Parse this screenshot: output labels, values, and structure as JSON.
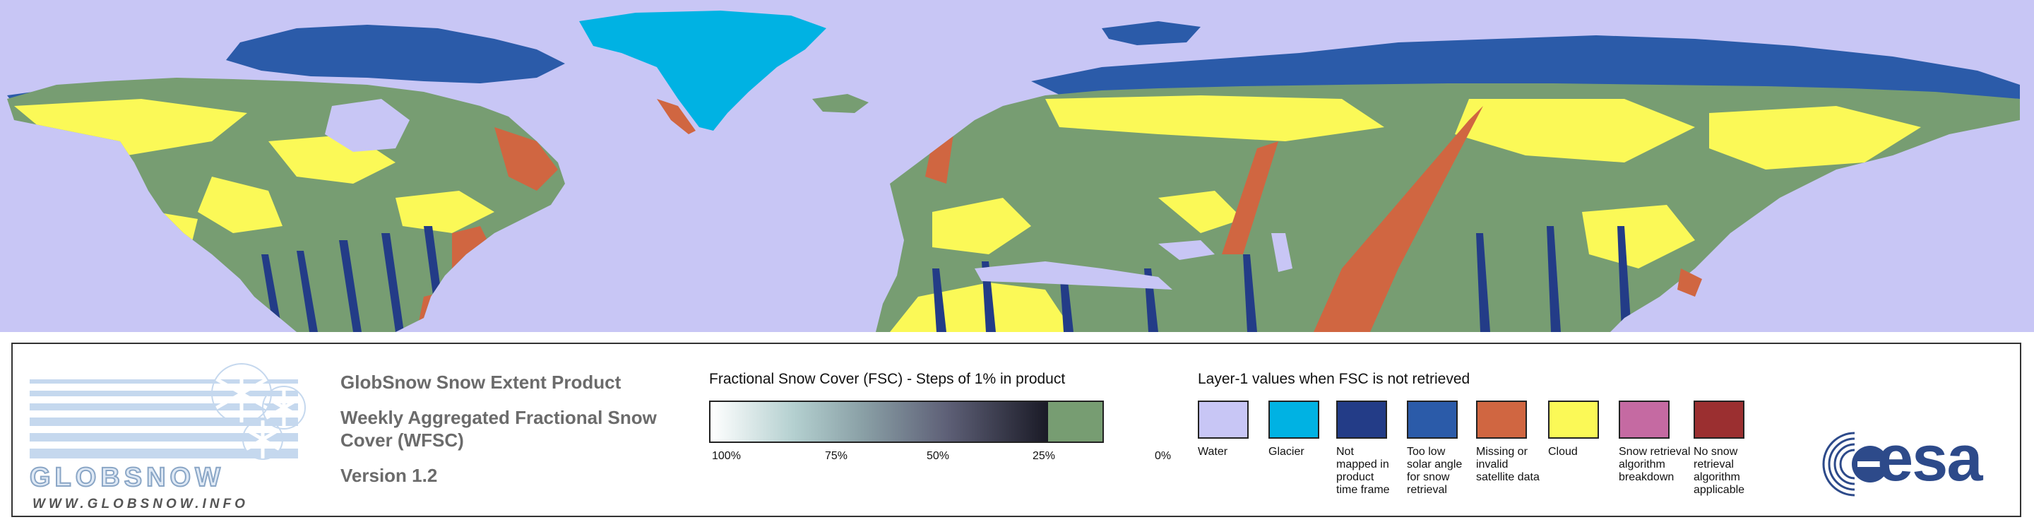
{
  "map": {
    "colors": {
      "water": "#c8c6f5",
      "land": "#779d72",
      "cloud": "#fbf957",
      "glacier": "#00b2e3",
      "not_mapped": "#233c87",
      "low_sun": "#2b5ba9",
      "missing": "#d06641",
      "breakdown": "#c56aa2",
      "not_applicable": "#9b2f30"
    }
  },
  "logo": {
    "wordmark": "GLOBSNOW",
    "url": "WWW.GLOBSNOW.INFO"
  },
  "product": {
    "title": "GlobSnow Snow Extent Product",
    "subtitle": "Weekly Aggregated Fractional Snow Cover (WFSC)",
    "version": "Version 1.2"
  },
  "fsc": {
    "title": "Fractional Snow Cover (FSC) - Steps of 1% in product",
    "ticks": [
      "100%",
      "75%",
      "50%",
      "25%",
      "0%"
    ]
  },
  "layer1": {
    "title": "Layer-1 values when FSC is not retrieved",
    "items": [
      {
        "label": "Water",
        "color": "#c8c6f5"
      },
      {
        "label": "Glacier",
        "color": "#00b2e3"
      },
      {
        "label": "Not mapped in product time frame",
        "color": "#233c87"
      },
      {
        "label": "Too low solar angle for snow retrieval",
        "color": "#2b5ba9"
      },
      {
        "label": "Missing or invalid satellite data",
        "color": "#d06641"
      },
      {
        "label": "Cloud",
        "color": "#fbf957"
      },
      {
        "label": "Snow retrieval algorithm breakdown",
        "color": "#c56aa2"
      },
      {
        "label": "No snow retrieval algorithm applicable",
        "color": "#9b2f30"
      }
    ]
  },
  "esa": {
    "wordmark": "esa"
  }
}
